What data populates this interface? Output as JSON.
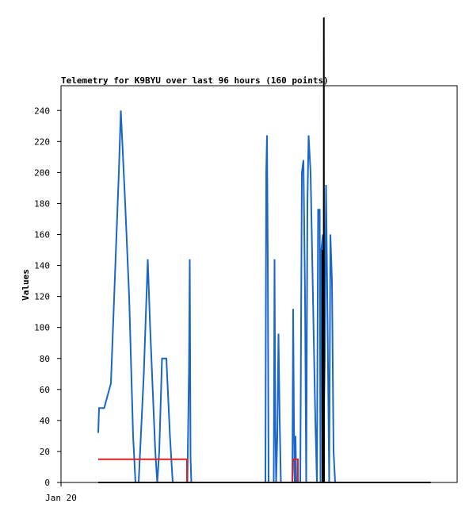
{
  "chart_data": {
    "type": "line",
    "title": "Telemetry for K9BYU over last 96 hours (160 points)",
    "ylabel": "Values",
    "xlabel": "",
    "ylim": [
      0,
      256
    ],
    "y_ticks": [
      0,
      20,
      40,
      60,
      80,
      100,
      120,
      140,
      160,
      180,
      200,
      220,
      240
    ],
    "x_ticks": [
      {
        "x": 0,
        "label": "Jan 20"
      }
    ],
    "xlim": [
      0,
      100
    ],
    "grid": false,
    "colors": {
      "blue": "#1a66c9",
      "red": "#e02020",
      "black": "#000000",
      "frame": "#000000"
    },
    "series": [
      {
        "color": "blue",
        "points": [
          [
            9.4,
            32
          ],
          [
            9.6,
            48
          ],
          [
            10.9,
            48
          ],
          [
            12.6,
            64
          ],
          [
            14.6,
            200
          ],
          [
            15.1,
            240
          ],
          [
            16.2,
            180
          ],
          [
            17.2,
            120
          ],
          [
            18.2,
            30
          ],
          [
            18.8,
            0
          ],
          [
            19.6,
            0
          ],
          [
            20.9,
            70
          ],
          [
            21.9,
            144
          ],
          [
            22.5,
            100
          ],
          [
            23.8,
            20
          ],
          [
            24.3,
            0
          ],
          [
            24.8,
            20
          ],
          [
            25.5,
            80
          ],
          [
            26.6,
            80
          ],
          [
            27.5,
            30
          ],
          [
            28.2,
            0
          ],
          [
            31.9,
            0
          ],
          [
            32.3,
            72
          ],
          [
            32.5,
            144
          ],
          [
            32.7,
            16
          ],
          [
            32.9,
            0
          ],
          [
            51.6,
            0
          ],
          [
            51.8,
            200
          ],
          [
            52.0,
            224
          ],
          [
            52.2,
            144
          ],
          [
            52.4,
            0
          ],
          [
            53.7,
            0
          ],
          [
            53.9,
            144
          ],
          [
            54.1,
            40
          ],
          [
            54.3,
            0
          ],
          [
            54.6,
            30
          ],
          [
            54.9,
            96
          ],
          [
            55.2,
            40
          ],
          [
            55.5,
            0
          ],
          [
            58.4,
            0
          ],
          [
            58.6,
            112
          ],
          [
            58.8,
            40
          ],
          [
            59.0,
            0
          ],
          [
            59.2,
            30
          ],
          [
            59.4,
            0
          ],
          [
            60.4,
            0
          ],
          [
            60.8,
            200
          ],
          [
            61.2,
            208
          ],
          [
            61.6,
            120
          ],
          [
            61.9,
            0
          ],
          [
            62.2,
            180
          ],
          [
            62.5,
            224
          ],
          [
            63.0,
            200
          ],
          [
            63.6,
            120
          ],
          [
            64.2,
            40
          ],
          [
            64.6,
            0
          ],
          [
            64.9,
            176
          ],
          [
            65.3,
            176
          ],
          [
            65.5,
            0
          ],
          [
            65.7,
            150
          ],
          [
            66.1,
            160
          ],
          [
            66.3,
            30
          ],
          [
            66.6,
            80
          ],
          [
            66.9,
            192
          ],
          [
            67.3,
            100
          ],
          [
            67.7,
            0
          ],
          [
            68.0,
            160
          ],
          [
            68.4,
            130
          ],
          [
            68.8,
            20
          ],
          [
            69.2,
            0
          ]
        ]
      },
      {
        "color": "red",
        "points": [
          [
            9.4,
            15
          ],
          [
            31.8,
            15
          ],
          [
            31.8,
            0
          ],
          [
            58.4,
            0
          ],
          [
            58.6,
            15
          ],
          [
            59.8,
            15
          ],
          [
            59.8,
            0
          ],
          [
            64.0,
            0
          ]
        ]
      },
      {
        "color": "black",
        "points": [
          [
            9.4,
            0
          ],
          [
            66.0,
            0
          ],
          [
            66.0,
            150
          ],
          [
            66.1,
            0
          ],
          [
            66.3,
            0
          ],
          [
            66.35,
            300
          ],
          [
            66.4,
            0
          ],
          [
            93.3,
            0
          ]
        ]
      }
    ]
  }
}
